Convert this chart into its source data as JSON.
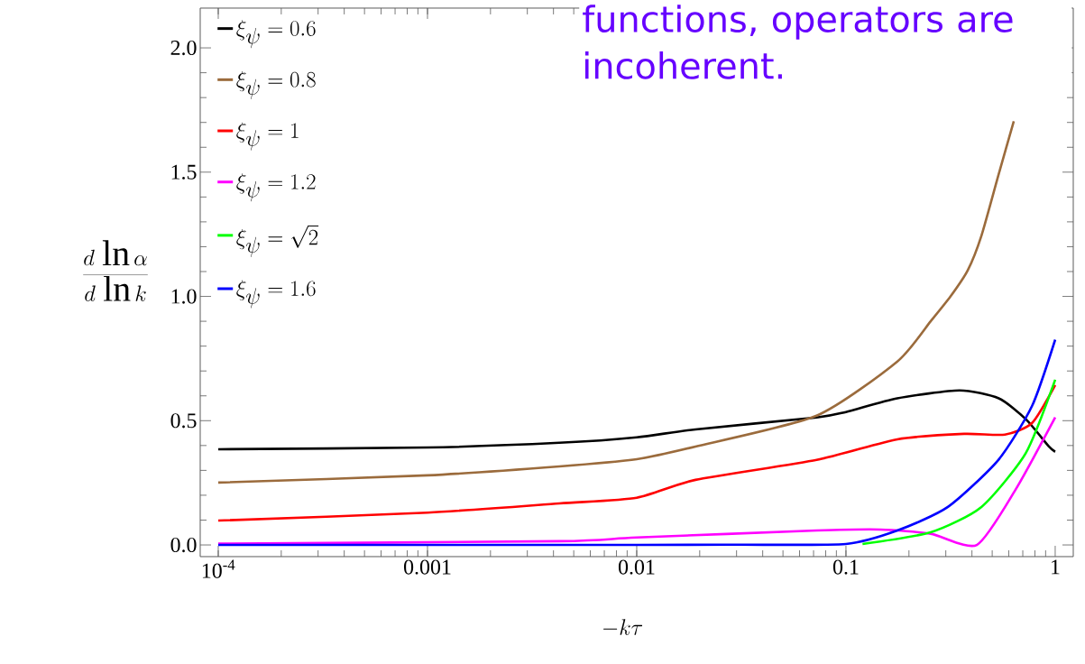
{
  "chart_data": {
    "type": "line",
    "xlabel": "-k\\tau",
    "ylabel": "\\frac{d\\,\\ln\\alpha}{d\\,\\ln k}",
    "annotations": [
      "functions, operators are incoherent."
    ],
    "log": "x",
    "xlim": [
      8.2e-05,
      1.22
    ],
    "ylim": [
      -0.047,
      2.16
    ],
    "xticks": [
      {
        "value": 0.0001,
        "label": "10$^{-4}$"
      },
      0.001,
      0.01,
      0.1,
      1
    ],
    "yticks": [
      {
        "value": 0,
        "label": "0.0"
      },
      0.5,
      {
        "value": 1,
        "label": "1.0"
      },
      1.5,
      {
        "value": 2,
        "label": "2.0"
      }
    ],
    "legend": "top left",
    "series": [
      {
        "name": "\\xi_{\\psi}=0.6",
        "color": "#000000",
        "x": [
          0.0001,
          0.001,
          0.00427,
          0.01,
          0.0191,
          0.0724,
          0.1,
          0.176,
          0.349,
          0.537,
          0.724,
          0.933,
          1
        ],
        "values": [
          0.385,
          0.392,
          0.411,
          0.433,
          0.465,
          0.513,
          0.535,
          0.59,
          0.622,
          0.59,
          0.506,
          0.396,
          0.375
        ]
      },
      {
        "name": "\\xi_{\\psi}=0.8",
        "color": "#9b6b3c",
        "x": [
          0.0001,
          0.001,
          0.00427,
          0.01,
          0.0191,
          0.0724,
          0.176,
          0.254,
          0.316,
          0.382,
          0.444,
          0.535,
          0.634
        ],
        "values": [
          0.251,
          0.28,
          0.316,
          0.345,
          0.396,
          0.52,
          0.738,
          0.9,
          1.0,
          1.105,
          1.244,
          1.487,
          1.705
        ]
      },
      {
        "name": "\\xi_{\\psi}=1",
        "color": "#ff0000",
        "x": [
          0.0001,
          0.001,
          0.00427,
          0.01,
          0.0191,
          0.0724,
          0.176,
          0.367,
          0.575,
          0.776,
          1
        ],
        "values": [
          0.098,
          0.13,
          0.167,
          0.19,
          0.262,
          0.342,
          0.425,
          0.447,
          0.444,
          0.491,
          0.643
        ]
      },
      {
        "name": "\\xi_{\\psi}=1.2",
        "color": "#ff00ff",
        "x": [
          0.0001,
          0.00427,
          0.01,
          0.0724,
          0.146,
          0.254,
          0.422,
          0.646,
          1
        ],
        "values": [
          0.005,
          0.015,
          0.03,
          0.058,
          0.062,
          0.045,
          0.0,
          0.222,
          0.513
        ]
      },
      {
        "name": "\\xi_{\\psi}=\\sqrt{2}",
        "color": "#00ff00",
        "x": [
          0.12,
          0.254,
          0.444,
          0.724,
          1
        ],
        "values": [
          0.004,
          0.051,
          0.153,
          0.37,
          0.665
        ]
      },
      {
        "name": "\\xi_{\\psi}=1.6",
        "color": "#0000ff",
        "x": [
          0.0001,
          0.01,
          0.03,
          0.1,
          0.176,
          0.307,
          0.535,
          0.776,
          1
        ],
        "values": [
          0.0,
          0.0,
          0.001,
          0.004,
          0.058,
          0.153,
          0.342,
          0.56,
          0.826
        ]
      }
    ]
  }
}
